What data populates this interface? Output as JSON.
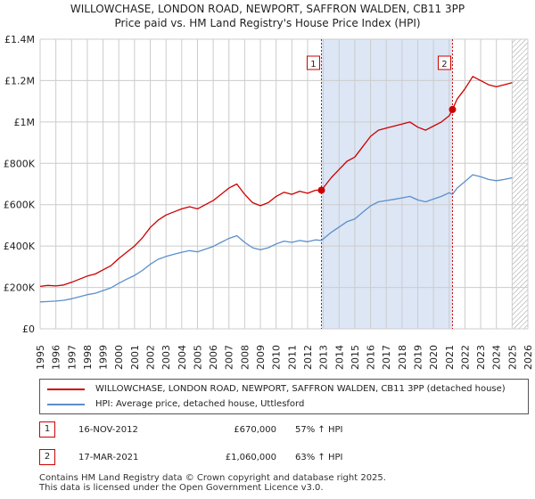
{
  "title_line1": "WILLOWCHASE, LONDON ROAD, NEWPORT, SAFFRON WALDEN, CB11 3PP",
  "title_line2": "Price paid vs. HM Land Registry's House Price Index (HPI)",
  "colors": {
    "property": "#cc0000",
    "hpi": "#5b8fcb",
    "shade": "#dde6f5",
    "grid": "#cccccc",
    "marker_line": "#cc0000"
  },
  "chart_data": {
    "type": "line",
    "title": "WILLOWCHASE, LONDON ROAD, NEWPORT, SAFFRON WALDEN, CB11 3PP - Price paid vs. HM Land Registry's House Price Index (HPI)",
    "xlabel": "",
    "ylabel": "",
    "xlim": [
      1995,
      2026
    ],
    "ylim": [
      0,
      1400000
    ],
    "y_ticks": [
      {
        "value": 0,
        "label": "£0"
      },
      {
        "value": 200000,
        "label": "£200K"
      },
      {
        "value": 400000,
        "label": "£400K"
      },
      {
        "value": 600000,
        "label": "£600K"
      },
      {
        "value": 800000,
        "label": "£800K"
      },
      {
        "value": 1000000,
        "label": "£1M"
      },
      {
        "value": 1200000,
        "label": "£1.2M"
      },
      {
        "value": 1400000,
        "label": "£1.4M"
      }
    ],
    "x_ticks": [
      "1995",
      "1996",
      "1997",
      "1998",
      "1999",
      "2000",
      "2001",
      "2002",
      "2003",
      "2004",
      "2005",
      "2006",
      "2007",
      "2008",
      "2009",
      "2010",
      "2011",
      "2012",
      "2013",
      "2014",
      "2015",
      "2016",
      "2017",
      "2018",
      "2019",
      "2020",
      "2021",
      "2022",
      "2023",
      "2024",
      "2025",
      "2026"
    ],
    "grid": true,
    "shaded_span": {
      "from": 2012.88,
      "to": 2021.21
    },
    "hatched_from": 2025.0,
    "series": [
      {
        "name": "WILLOWCHASE, LONDON ROAD, NEWPORT, SAFFRON WALDEN, CB11 3PP (detached house)",
        "color": "#cc0000",
        "x": [
          1995.0,
          1995.5,
          1996.0,
          1996.5,
          1997.0,
          1997.5,
          1998.0,
          1998.5,
          1999.0,
          1999.5,
          2000.0,
          2000.5,
          2001.0,
          2001.5,
          2002.0,
          2002.5,
          2003.0,
          2003.5,
          2004.0,
          2004.5,
          2005.0,
          2005.5,
          2006.0,
          2006.5,
          2007.0,
          2007.5,
          2008.0,
          2008.5,
          2009.0,
          2009.5,
          2010.0,
          2010.5,
          2011.0,
          2011.5,
          2012.0,
          2012.5,
          2012.88,
          2013.5,
          2014.0,
          2014.5,
          2015.0,
          2015.5,
          2016.0,
          2016.5,
          2017.0,
          2017.5,
          2018.0,
          2018.5,
          2019.0,
          2019.5,
          2020.0,
          2020.5,
          2021.0,
          2021.21,
          2021.5,
          2022.0,
          2022.5,
          2023.0,
          2023.5,
          2024.0,
          2024.5,
          2025.0
        ],
        "values": [
          205000,
          210000,
          207000,
          212000,
          225000,
          240000,
          255000,
          265000,
          285000,
          305000,
          340000,
          370000,
          400000,
          440000,
          490000,
          525000,
          550000,
          565000,
          580000,
          590000,
          580000,
          600000,
          620000,
          650000,
          680000,
          700000,
          650000,
          610000,
          595000,
          610000,
          640000,
          660000,
          650000,
          665000,
          655000,
          670000,
          670000,
          730000,
          770000,
          810000,
          830000,
          880000,
          930000,
          960000,
          970000,
          980000,
          990000,
          1000000,
          975000,
          960000,
          980000,
          1000000,
          1030000,
          1060000,
          1110000,
          1160000,
          1220000,
          1200000,
          1180000,
          1170000,
          1180000,
          1190000
        ]
      },
      {
        "name": "HPI: Average price, detached house, Uttlesford",
        "color": "#5b8fcb",
        "x": [
          1995.0,
          1995.5,
          1996.0,
          1996.5,
          1997.0,
          1997.5,
          1998.0,
          1998.5,
          1999.0,
          1999.5,
          2000.0,
          2000.5,
          2001.0,
          2001.5,
          2002.0,
          2002.5,
          2003.0,
          2003.5,
          2004.0,
          2004.5,
          2005.0,
          2005.5,
          2006.0,
          2006.5,
          2007.0,
          2007.5,
          2008.0,
          2008.5,
          2009.0,
          2009.5,
          2010.0,
          2010.5,
          2011.0,
          2011.5,
          2012.0,
          2012.5,
          2012.88,
          2013.5,
          2014.0,
          2014.5,
          2015.0,
          2015.5,
          2016.0,
          2016.5,
          2017.0,
          2017.5,
          2018.0,
          2018.5,
          2019.0,
          2019.5,
          2020.0,
          2020.5,
          2021.0,
          2021.21,
          2021.5,
          2022.0,
          2022.5,
          2023.0,
          2023.5,
          2024.0,
          2024.5,
          2025.0
        ],
        "values": [
          130000,
          132000,
          134000,
          138000,
          145000,
          155000,
          165000,
          172000,
          185000,
          198000,
          220000,
          240000,
          258000,
          282000,
          312000,
          336000,
          350000,
          360000,
          370000,
          378000,
          372000,
          385000,
          398000,
          418000,
          437000,
          450000,
          418000,
          392000,
          382000,
          392000,
          410000,
          424000,
          418000,
          427000,
          421000,
          430000,
          427000,
          466000,
          492000,
          518000,
          531000,
          563000,
          594000,
          614000,
          620000,
          626000,
          633000,
          640000,
          623000,
          614000,
          627000,
          640000,
          658000,
          650000,
          680000,
          712000,
          745000,
          735000,
          722000,
          716000,
          722000,
          730000
        ]
      }
    ],
    "annotations": [
      {
        "label": "1",
        "x": 2012.88,
        "value": 670000
      },
      {
        "label": "2",
        "x": 2021.21,
        "value": 1060000
      }
    ]
  },
  "legend": {
    "property_label": "WILLOWCHASE, LONDON ROAD, NEWPORT, SAFFRON WALDEN, CB11 3PP (detached house)",
    "hpi_label": "HPI: Average price, detached house, Uttlesford"
  },
  "transactions": [
    {
      "num": "1",
      "date": "16-NOV-2012",
      "price": "£670,000",
      "hpi": "57% ↑ HPI"
    },
    {
      "num": "2",
      "date": "17-MAR-2021",
      "price": "£1,060,000",
      "hpi": "63% ↑ HPI"
    }
  ],
  "footer_line1": "Contains HM Land Registry data © Crown copyright and database right 2025.",
  "footer_line2": "This data is licensed under the Open Government Licence v3.0."
}
